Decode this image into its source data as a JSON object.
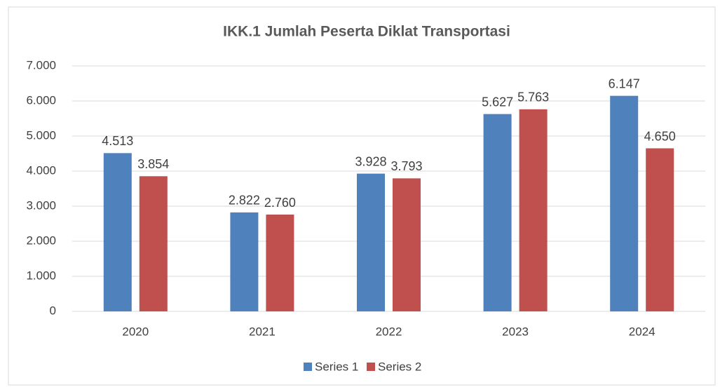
{
  "chart_data": {
    "type": "bar",
    "title": "IKK.1 Jumlah Peserta Diklat Transportasi",
    "categories": [
      "2020",
      "2021",
      "2022",
      "2023",
      "2024"
    ],
    "series": [
      {
        "name": "Series 1",
        "color": "#4f81bd",
        "values": [
          4513,
          2822,
          3928,
          5627,
          6147
        ],
        "value_labels": [
          "4.513",
          "2.822",
          "3.928",
          "5.627",
          "6.147"
        ]
      },
      {
        "name": "Series 2",
        "color": "#c0504d",
        "values": [
          3854,
          2760,
          3793,
          5763,
          4650
        ],
        "value_labels": [
          "3.854",
          "2.760",
          "3.793",
          "5.763",
          "4.650"
        ]
      }
    ],
    "ylim": [
      0,
      7000
    ],
    "yticks": [
      0,
      {
        "value": 1000,
        "label": "1.000"
      },
      {
        "value": 2000,
        "label": "2.000"
      },
      {
        "value": 3000,
        "label": "3.000"
      },
      {
        "value": 4000,
        "label": "4.000"
      },
      {
        "value": 5000,
        "label": "5.000"
      },
      {
        "value": 6000,
        "label": "6.000"
      },
      {
        "value": 7000,
        "label": "7.000"
      }
    ],
    "grid": true,
    "legend": "bottom"
  }
}
